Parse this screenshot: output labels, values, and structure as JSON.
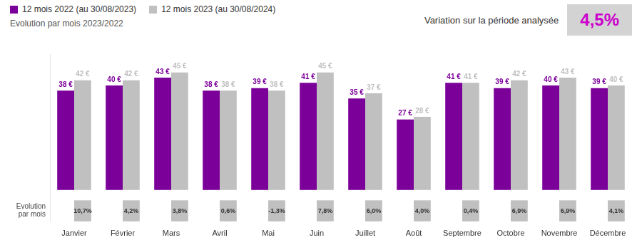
{
  "chart_data": {
    "type": "bar",
    "categories": [
      "Janvier",
      "Février",
      "Mars",
      "Avril",
      "Mai",
      "Juin",
      "Juillet",
      "Août",
      "Septembre",
      "Octobre",
      "Novembre",
      "Décembre"
    ],
    "series": [
      {
        "name": "12 mois 2022 (au 30/08/2023)",
        "color": "#7B0099",
        "values": [
          38,
          40,
          43,
          38,
          39,
          41,
          35,
          27,
          41,
          39,
          40,
          39
        ],
        "value_labels": [
          "38 €",
          "40 €",
          "43 €",
          "38 €",
          "39 €",
          "41 €",
          "35 €",
          "27 €",
          "41 €",
          "39 €",
          "40 €",
          "39 €"
        ]
      },
      {
        "name": "12 mois 2023 (au 30/08/2024)",
        "color": "#C0C0C0",
        "values": [
          42,
          42,
          45,
          38,
          38,
          45,
          37,
          28,
          41,
          42,
          43,
          40
        ],
        "value_labels": [
          "42 €",
          "42 €",
          "45 €",
          "38 €",
          "38 €",
          "45 €",
          "37 €",
          "28 €",
          "41 €",
          "42 €",
          "43 €",
          "40 €"
        ]
      }
    ],
    "data_labels": true,
    "ylim": [
      -12,
      52
    ],
    "tick_labels": "x",
    "grid": false,
    "legend": "upper left",
    "subtitle": "Evolution par mois 2023/2022",
    "evolution": {
      "label": "Evolution\npar mois",
      "color": "#C0C0C0",
      "values": [
        10.7,
        4.2,
        3.8,
        0.6,
        -1.3,
        7.8,
        6.0,
        4.0,
        0.4,
        6.9,
        6.9,
        4.1
      ],
      "value_labels": [
        "10,7%",
        "4,2%",
        "3,8%",
        "0,6%",
        "-1,3%",
        "7,8%",
        "6,0%",
        "4,0%",
        "0,4%",
        "6,9%",
        "6,9%",
        "4,1%"
      ]
    },
    "variation": {
      "label": "Variation sur la période analysée",
      "value": 4.5,
      "value_label": "4,5%",
      "color": "#CC00CC"
    }
  }
}
